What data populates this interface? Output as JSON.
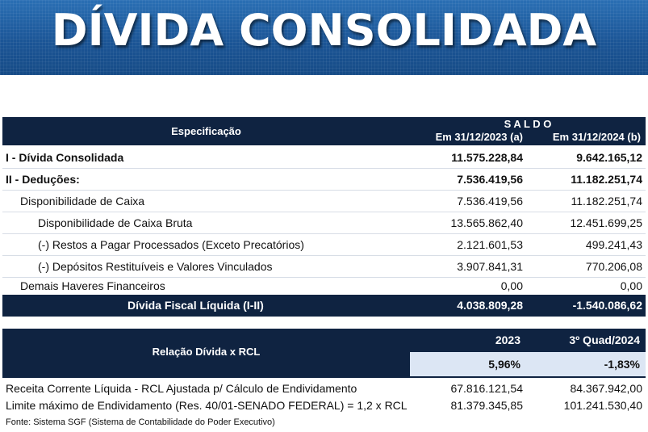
{
  "banner": {
    "title": "DÍVIDA CONSOLIDADA"
  },
  "table1": {
    "spec_header": "Especificação",
    "saldo_header": "S A L D O",
    "col_a_header": "Em 31/12/2023 (a)",
    "col_b_header": "Em 31/12/2024 (b)",
    "rows": [
      {
        "label": "I - Dívida Consolidada",
        "a": "11.575.228,84",
        "b": "9.642.165,12"
      },
      {
        "label": "II - Deduções:",
        "a": "7.536.419,56",
        "b": "11.182.251,74"
      },
      {
        "label": "Disponibilidade de Caixa",
        "a": "7.536.419,56",
        "b": "11.182.251,74"
      },
      {
        "label": "Disponibilidade de Caixa Bruta",
        "a": "13.565.862,40",
        "b": "12.451.699,25"
      },
      {
        "label": "(-) Restos a Pagar Processados (Exceto Precatórios)",
        "a": "2.121.601,53",
        "b": "499.241,43"
      },
      {
        "label": "(-) Depósitos Restituíveis e Valores Vinculados",
        "a": "3.907.841,31",
        "b": "770.206,08"
      },
      {
        "label": "Demais Haveres Financeiros",
        "a": "0,00",
        "b": "0,00"
      }
    ],
    "total": {
      "label": "Dívida Fiscal Líquida (I-II)",
      "a": "4.038.809,28",
      "b": "-1.540.086,62"
    }
  },
  "table2": {
    "header": "Relação Dívida x RCL",
    "col_a_header": "2023",
    "col_b_header": "3º Quad/2024",
    "pct_a": "5,96%",
    "pct_b": "-1,83%",
    "rows": [
      {
        "label": "Receita Corrente Líquida - RCL  Ajustada p/ Cálculo de Endividamento",
        "a": "67.816.121,54",
        "b": "84.367.942,00"
      },
      {
        "label": "Limite máximo de Endividamento (Res. 40/01-SENADO FEDERAL) = 1,2 x RCL",
        "a": "81.379.345,85",
        "b": "101.241.530,40"
      }
    ]
  },
  "footer": {
    "source": "Fonte: Sistema SGF (Sistema de Contabilidade do Poder Executivo)"
  }
}
